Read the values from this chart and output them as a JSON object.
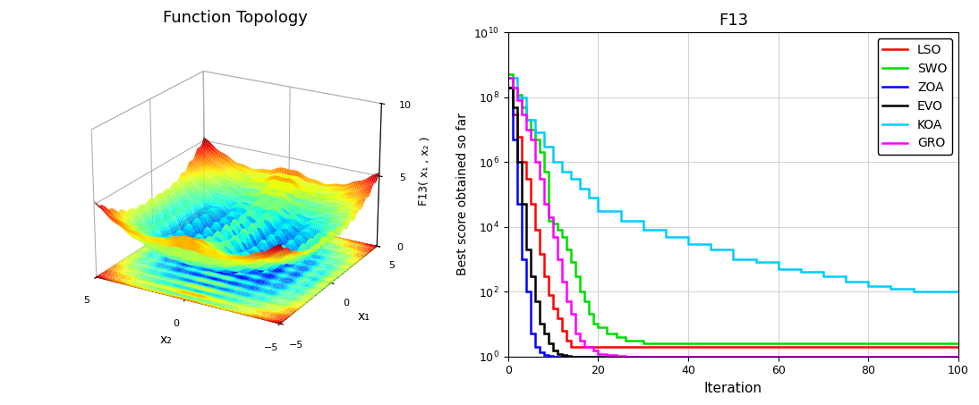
{
  "title_3d": "Function Topology",
  "title_2d": "F13",
  "xlabel_3d": "x₂",
  "ylabel_3d": "x₁",
  "zlabel_3d": "F13( x₁ , x₂ )",
  "xlabel_2d": "Iteration",
  "ylabel_2d": "Best score obtained so far",
  "xlim_2d": [
    0,
    100
  ],
  "ylim_2d": [
    1.0,
    10000000000.0
  ],
  "x_range": [
    -5,
    5
  ],
  "lines": [
    {
      "label": "LSO",
      "color": "#ff0000"
    },
    {
      "label": "SWO",
      "color": "#00dd00"
    },
    {
      "label": "ZOA",
      "color": "#0000ff"
    },
    {
      "label": "EVO",
      "color": "#000000"
    },
    {
      "label": "KOA",
      "color": "#00ccff"
    },
    {
      "label": "GRO",
      "color": "#ff00ff"
    }
  ],
  "LSO_x": [
    0,
    1,
    2,
    3,
    4,
    5,
    6,
    7,
    8,
    9,
    10,
    11,
    12,
    13,
    14,
    15,
    16,
    17,
    18,
    19,
    20,
    25,
    30,
    35,
    40,
    50,
    60,
    70,
    80,
    90,
    100
  ],
  "LSO_y": [
    400000000.0,
    30000000.0,
    6000000.0,
    1000000.0,
    300000.0,
    50000.0,
    8000.0,
    1500.0,
    300.0,
    80.0,
    30.0,
    15.0,
    6,
    3,
    2,
    2,
    2,
    2,
    2,
    2,
    2,
    2,
    2,
    2,
    2,
    2,
    2,
    2,
    2,
    2,
    2
  ],
  "SWO_x": [
    0,
    1,
    2,
    3,
    4,
    5,
    6,
    7,
    8,
    9,
    10,
    11,
    12,
    13,
    14,
    15,
    16,
    17,
    18,
    19,
    20,
    22,
    24,
    26,
    28,
    30,
    35,
    40,
    45,
    50,
    60,
    70,
    80,
    90,
    100
  ],
  "SWO_y": [
    500000000.0,
    200000000.0,
    120000000.0,
    50000000.0,
    20000000.0,
    10000000.0,
    5000000.0,
    2000000.0,
    500000.0,
    15000.0,
    13000.0,
    8000.0,
    5000.0,
    2000.0,
    800.0,
    300.0,
    100.0,
    50.0,
    20.0,
    10.0,
    8,
    5,
    4,
    3,
    3,
    2.5,
    2.5,
    2.5,
    2.5,
    2.5,
    2.5,
    2.5,
    2.5,
    2.5,
    2.5
  ],
  "ZOA_x": [
    0,
    1,
    2,
    3,
    4,
    5,
    6,
    7,
    8,
    9,
    10,
    15,
    20,
    30,
    40,
    50,
    60,
    70,
    80,
    90,
    100
  ],
  "ZOA_y": [
    200000000.0,
    5000000.0,
    50000.0,
    1000.0,
    100.0,
    5,
    2,
    1.3,
    1.1,
    1.05,
    1,
    1,
    1,
    1,
    1,
    1,
    1,
    1,
    1,
    1,
    1
  ],
  "EVO_x": [
    0,
    1,
    2,
    3,
    4,
    5,
    6,
    7,
    8,
    9,
    10,
    11,
    12,
    13,
    14,
    15,
    16,
    17,
    18,
    20,
    25,
    30,
    40,
    50,
    60,
    70,
    80,
    90,
    100
  ],
  "EVO_y": [
    200000000.0,
    50000000.0,
    1000000.0,
    50000.0,
    2000.0,
    300.0,
    50.0,
    10.0,
    5,
    2.5,
    1.5,
    1.2,
    1.1,
    1.05,
    1,
    1,
    1,
    1,
    1,
    1,
    1,
    1,
    1,
    1,
    1,
    1,
    1,
    1,
    1
  ],
  "KOA_x": [
    0,
    2,
    4,
    6,
    8,
    10,
    12,
    14,
    16,
    18,
    20,
    25,
    30,
    35,
    40,
    45,
    50,
    55,
    60,
    65,
    70,
    75,
    80,
    85,
    90,
    95,
    100
  ],
  "KOA_y": [
    400000000.0,
    100000000.0,
    20000000.0,
    8000000.0,
    3000000.0,
    1000000.0,
    500000.0,
    300000.0,
    150000.0,
    80000.0,
    30000.0,
    15000.0,
    8000.0,
    5000.0,
    3000.0,
    2000.0,
    1000.0,
    800.0,
    500.0,
    400.0,
    300.0,
    200.0,
    150.0,
    120.0,
    100.0,
    100.0,
    100.0
  ],
  "GRO_x": [
    0,
    1,
    2,
    3,
    4,
    5,
    6,
    7,
    8,
    9,
    10,
    11,
    12,
    13,
    14,
    15,
    16,
    17,
    18,
    19,
    20,
    22,
    24,
    26,
    28,
    30,
    35,
    40,
    50,
    60,
    70,
    80,
    90,
    100
  ],
  "GRO_y": [
    400000000.0,
    200000000.0,
    80000000.0,
    30000000.0,
    10000000.0,
    5000000.0,
    1000000.0,
    300000.0,
    50000.0,
    20000.0,
    5000.0,
    1000.0,
    200.0,
    50.0,
    20.0,
    5,
    3,
    2,
    2,
    1.5,
    1.2,
    1.1,
    1.05,
    1,
    1,
    1,
    1,
    1,
    1,
    1,
    1,
    1,
    1,
    1
  ]
}
